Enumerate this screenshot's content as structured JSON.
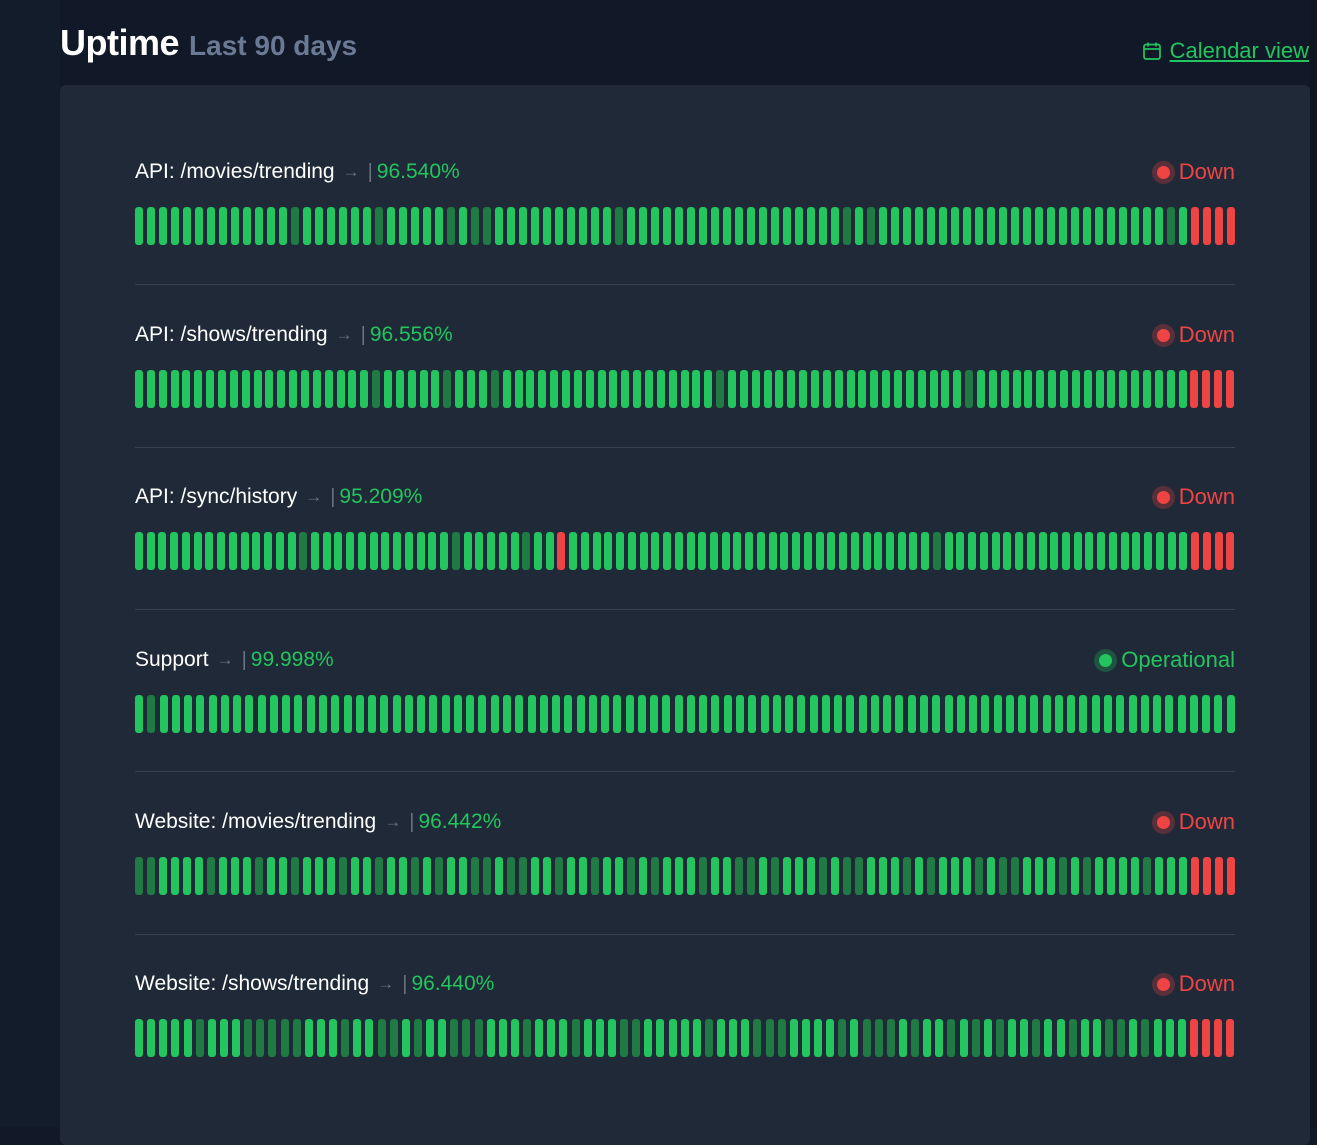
{
  "header": {
    "title": "Uptime",
    "subtitle": "Last 90 days",
    "calendar_link": "Calendar view"
  },
  "colors": {
    "operational": "#22c55e",
    "degraded": "#1f7a44",
    "down": "#ef4444"
  },
  "monitors": [
    {
      "name": "API: /movies/trending",
      "arrow": "→",
      "separator": "|",
      "uptime": "96.540%",
      "status": "Down",
      "status_kind": "down",
      "days": "GGGGGGGGGGGGGDGGGGGGDGGGGGDGDDGGGGGGGGGGDGGGGGGGGGGGGGGGGGGDGDGGGGGGGGGGGGGGGGGGGGGGGGDGRRRR"
    },
    {
      "name": "API: /shows/trending",
      "arrow": "→",
      "separator": "|",
      "uptime": "96.556%",
      "status": "Down",
      "status_kind": "down",
      "days": "GGGGGGGGGGGGGGGGGGGGDGGGGGDGGGDGGGGGGGGGGGGGGGGGGDGGGGGGGGGGGGGGGGGGGGDGGGGGGGGGGGGGGGGGGRRRR"
    },
    {
      "name": "API: /sync/history",
      "arrow": "→",
      "separator": "|",
      "uptime": "95.209%",
      "status": "Down",
      "status_kind": "down",
      "days": "GGGGGGGGGGGGGGDGGGGGGGGGGGGDGGGGGDGGRGGGGGGGGGGGGGGGGGGGGGGGGGGGGGGGDGGGGGGGGGGGGGGGGGGGGGRRRR"
    },
    {
      "name": "Support",
      "arrow": "→",
      "separator": "|",
      "uptime": "99.998%",
      "status": "Operational",
      "status_kind": "up",
      "days": "GDGGGGGGGGGGGGGGGGGGGGGGGGGGGGGGGGGGGGGGGGGGGGGGGGGGGGGGGGGGGGGGGGGGGGGGGGGGGGGGGGGGGGGGGG"
    },
    {
      "name": "Website: /movies/trending",
      "arrow": "→",
      "separator": "|",
      "uptime": "96.442%",
      "status": "Down",
      "status_kind": "down",
      "days": "DDGGGGDGGGDGGDGGGDGGDGGDGDGGDDGDDGGDGGDGGDGDGGGDGGDDGDGGGDGDDGGGDGDGGGDGDDGGGDGDGGGGDGGGRRRR"
    },
    {
      "name": "Website: /shows/trending",
      "arrow": "→",
      "separator": "|",
      "uptime": "96.440%",
      "status": "Down",
      "status_kind": "down",
      "days": "GGGGGDGGGDDDDDGGGDGGDDGDGGDDDGGGDGGGDGGGDDGGGGGDGGGDDDGGGGDGDDDGDGGDGDGDGGDGGDGGDDGDGGGRRRR"
    }
  ]
}
